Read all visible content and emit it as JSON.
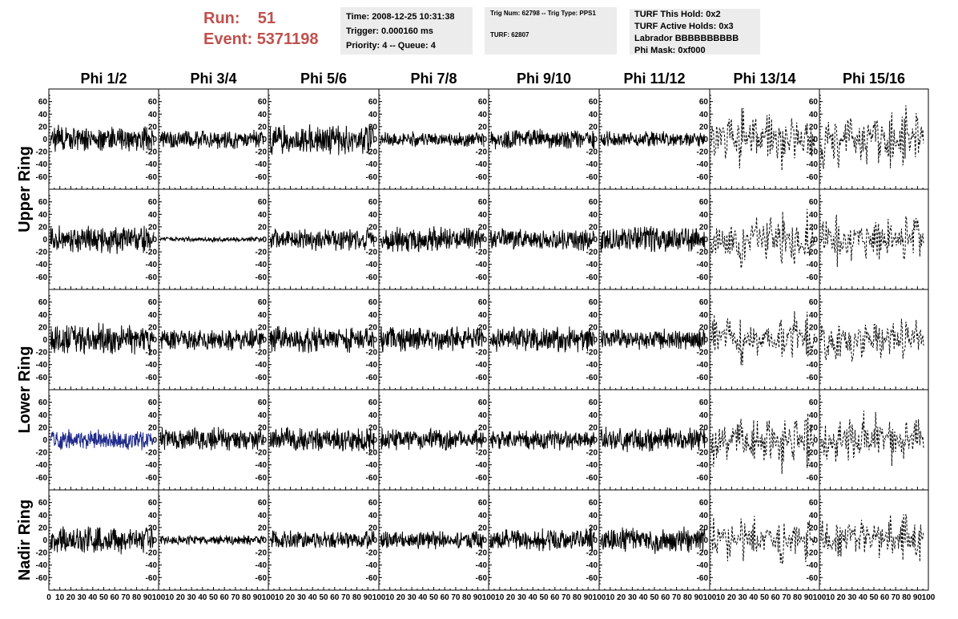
{
  "header": {
    "run_label": "Run:",
    "run_value": "51",
    "event_label": "Event:",
    "event_value": "5371198",
    "time": "Time: 2008-12-25 10:31:38",
    "trigger": "Trigger: 0.000160 ms",
    "priority": "Priority: 4 -- Queue: 4",
    "trig_num": "Trig Num: 62798 -- Trig Type: PPS1",
    "turf": "TURF: 62807",
    "turf_hold": "TURF This Hold: 0x2",
    "turf_active": "TURF Active Holds: 0x3",
    "labrador": "Labrador BBBBBBBBBB",
    "phi_mask": "Phi Mask: 0xf000"
  },
  "chart_data": {
    "type": "line",
    "columns": [
      "Phi 1/2",
      "Phi 3/4",
      "Phi 5/6",
      "Phi 7/8",
      "Phi 9/10",
      "Phi 11/12",
      "Phi 13/14",
      "Phi 15/16"
    ],
    "row_labels": [
      {
        "text": "Upper Ring",
        "spans_rows": [
          0,
          1
        ]
      },
      {
        "text": "Lower Ring",
        "spans_rows": [
          2,
          3
        ]
      },
      {
        "text": "Nadir Ring",
        "spans_rows": [
          4,
          4
        ]
      }
    ],
    "ylim": [
      -75,
      75
    ],
    "yticks": [
      -60,
      -40,
      -20,
      0,
      20,
      40,
      60
    ],
    "xlim": [
      0,
      100
    ],
    "xticks": [
      0,
      10,
      20,
      30,
      40,
      50,
      60,
      70,
      80,
      90,
      100
    ],
    "masked_columns": [
      6,
      7
    ],
    "highlight_panel": [
      3,
      0
    ],
    "colors": {
      "trace": "#000000",
      "highlight": "#1f2a8a"
    },
    "series": [
      {
        "row": 0,
        "col": 0,
        "amplitude": 22
      },
      {
        "row": 0,
        "col": 1,
        "amplitude": 15
      },
      {
        "row": 0,
        "col": 2,
        "amplitude": 25
      },
      {
        "row": 0,
        "col": 3,
        "amplitude": 12
      },
      {
        "row": 0,
        "col": 4,
        "amplitude": 16
      },
      {
        "row": 0,
        "col": 5,
        "amplitude": 12
      },
      {
        "row": 0,
        "col": 6,
        "amplitude": 38
      },
      {
        "row": 0,
        "col": 7,
        "amplitude": 40
      },
      {
        "row": 1,
        "col": 0,
        "amplitude": 22
      },
      {
        "row": 1,
        "col": 1,
        "amplitude": 4
      },
      {
        "row": 1,
        "col": 2,
        "amplitude": 18
      },
      {
        "row": 1,
        "col": 3,
        "amplitude": 20
      },
      {
        "row": 1,
        "col": 4,
        "amplitude": 18
      },
      {
        "row": 1,
        "col": 5,
        "amplitude": 22
      },
      {
        "row": 1,
        "col": 6,
        "amplitude": 35
      },
      {
        "row": 1,
        "col": 7,
        "amplitude": 32
      },
      {
        "row": 2,
        "col": 0,
        "amplitude": 25
      },
      {
        "row": 2,
        "col": 1,
        "amplitude": 18
      },
      {
        "row": 2,
        "col": 2,
        "amplitude": 22
      },
      {
        "row": 2,
        "col": 3,
        "amplitude": 20
      },
      {
        "row": 2,
        "col": 4,
        "amplitude": 20
      },
      {
        "row": 2,
        "col": 5,
        "amplitude": 17
      },
      {
        "row": 2,
        "col": 6,
        "amplitude": 32
      },
      {
        "row": 2,
        "col": 7,
        "amplitude": 30
      },
      {
        "row": 3,
        "col": 0,
        "amplitude": 16
      },
      {
        "row": 3,
        "col": 1,
        "amplitude": 20
      },
      {
        "row": 3,
        "col": 2,
        "amplitude": 20
      },
      {
        "row": 3,
        "col": 3,
        "amplitude": 18
      },
      {
        "row": 3,
        "col": 4,
        "amplitude": 16
      },
      {
        "row": 3,
        "col": 5,
        "amplitude": 20
      },
      {
        "row": 3,
        "col": 6,
        "amplitude": 38
      },
      {
        "row": 3,
        "col": 7,
        "amplitude": 32
      },
      {
        "row": 4,
        "col": 0,
        "amplitude": 22
      },
      {
        "row": 4,
        "col": 1,
        "amplitude": 8
      },
      {
        "row": 4,
        "col": 2,
        "amplitude": 15
      },
      {
        "row": 4,
        "col": 3,
        "amplitude": 15
      },
      {
        "row": 4,
        "col": 4,
        "amplitude": 18
      },
      {
        "row": 4,
        "col": 5,
        "amplitude": 22
      },
      {
        "row": 4,
        "col": 6,
        "amplitude": 30
      },
      {
        "row": 4,
        "col": 7,
        "amplitude": 32
      }
    ]
  }
}
